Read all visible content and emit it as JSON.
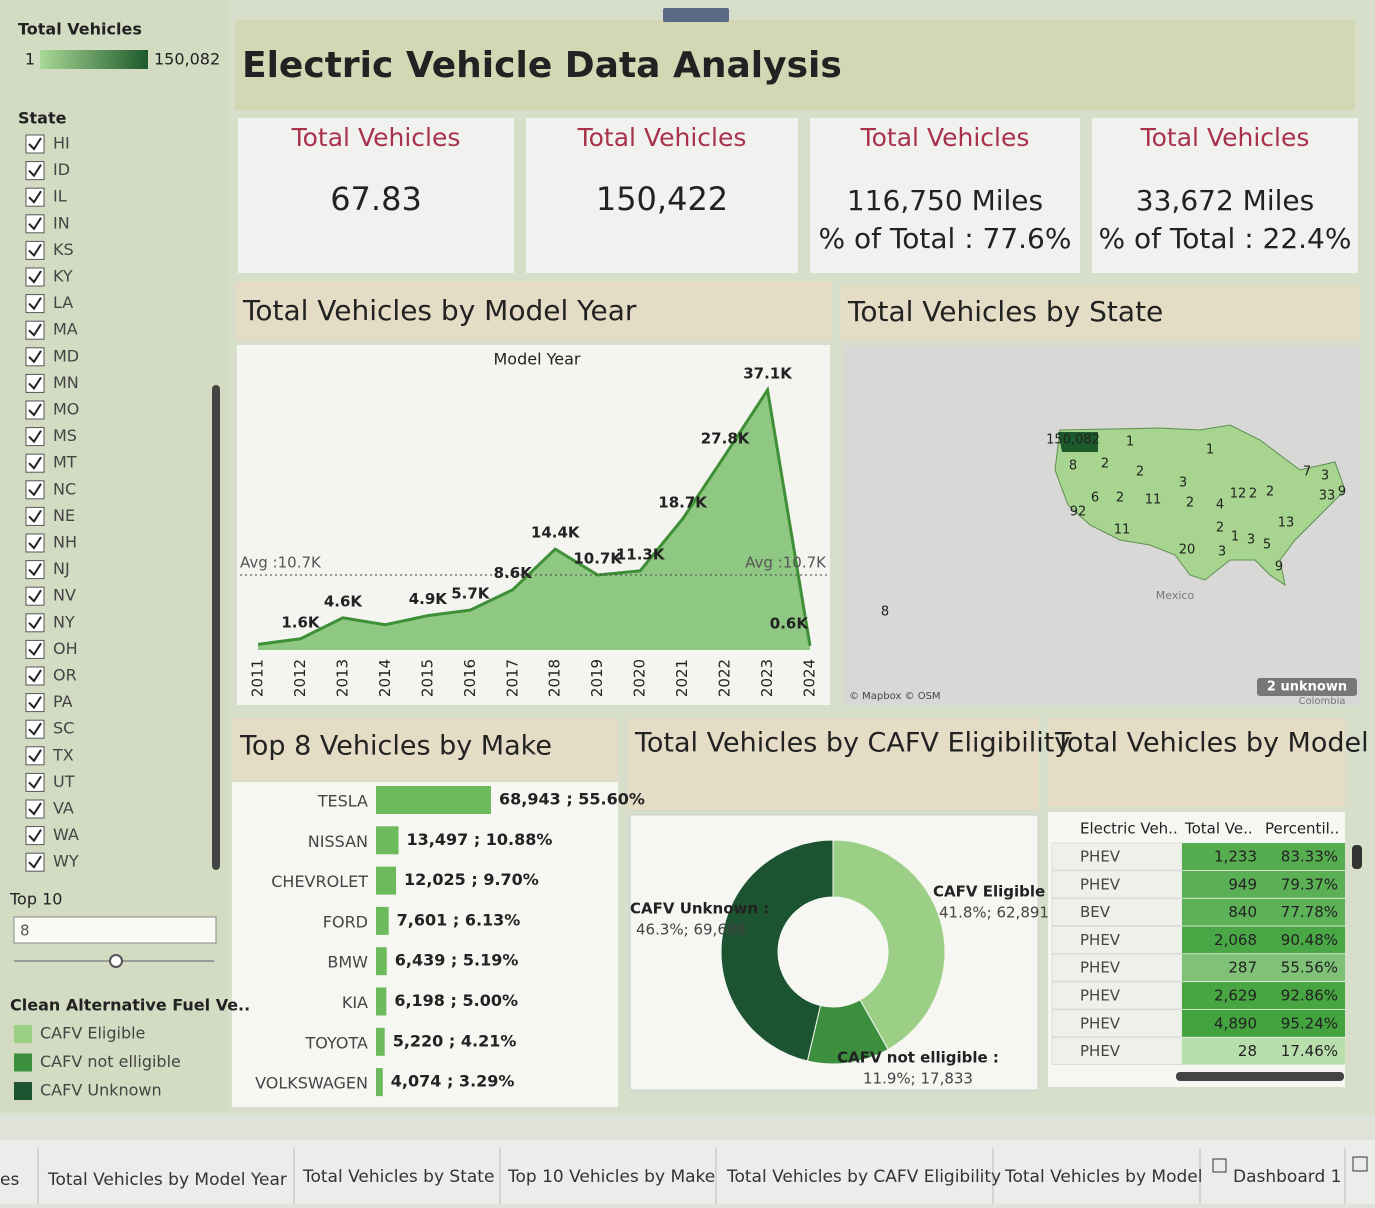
{
  "sidebar": {
    "color_legend": {
      "title": "Total Vehicles",
      "min": "1",
      "max": "150,082",
      "colors": [
        "#a9d896",
        "#1d5a2b"
      ]
    },
    "state_filter": {
      "title": "State",
      "states": [
        "HI",
        "ID",
        "IL",
        "IN",
        "KS",
        "KY",
        "LA",
        "MA",
        "MD",
        "MN",
        "MO",
        "MS",
        "MT",
        "NC",
        "NE",
        "NH",
        "NJ",
        "NV",
        "NY",
        "OH",
        "OR",
        "PA",
        "SC",
        "TX",
        "UT",
        "VA",
        "WA",
        "WY"
      ]
    },
    "top_n": {
      "title": "Top 10",
      "value": "8"
    }
  },
  "header": {
    "title": "Electric Vehicle Data Analysis"
  },
  "kpis": [
    {
      "title": "Total Vehicles",
      "lines": [
        "67.83"
      ]
    },
    {
      "title": "Total Vehicles",
      "lines": [
        "150,422"
      ]
    },
    {
      "title": "Total Vehicles",
      "lines": [
        "116,750 Miles",
        "% of Total : 77.6%"
      ]
    },
    {
      "title": "Total Vehicles",
      "lines": [
        "33,672 Miles",
        "% of Total : 22.4%"
      ]
    }
  ],
  "map": {
    "title": "Total Vehicles by State",
    "state_labels": [
      "150,082",
      "1",
      "8",
      "2",
      "2",
      "1",
      "6",
      "2",
      "11",
      "3",
      "2",
      "92",
      "11",
      "4",
      "12",
      "2",
      "2",
      "7",
      "3",
      "33",
      "9",
      "13",
      "2",
      "1",
      "3",
      "5",
      "20",
      "3",
      "9",
      "8"
    ],
    "places": [
      "Mexico",
      "Colombia"
    ],
    "credit": "© Mapbox © OSM",
    "unknown": "2 unknown"
  },
  "chart_data": [
    {
      "type": "area",
      "title": "Total Vehicles by Model Year",
      "x_label": "Model Year",
      "color": "#6dba5c",
      "categories": [
        "2011",
        "2012",
        "2013",
        "2014",
        "2015",
        "2016",
        "2017",
        "2018",
        "2019",
        "2020",
        "2021",
        "2022",
        "2023",
        "2024"
      ],
      "values": [
        800,
        1600,
        4600,
        3600,
        4900,
        5700,
        8600,
        14400,
        10700,
        11300,
        18700,
        27800,
        37100,
        600
      ],
      "value_labels": [
        null,
        "1.6K",
        "4.6K",
        null,
        "4.9K",
        "5.7K",
        "8.6K",
        "14.4K",
        "10.7K",
        "11.3K",
        "18.7K",
        "27.8K",
        "37.1K",
        "0.6K"
      ],
      "average": {
        "value": 10700,
        "label": "Avg :10.7K"
      }
    },
    {
      "type": "hbar",
      "title": "Top 8  Vehicles by Make",
      "color": "#6dba5c",
      "categories": [
        "TESLA",
        "NISSAN",
        "CHEVROLET",
        "FORD",
        "BMW",
        "KIA",
        "TOYOTA",
        "VOLKSWAGEN"
      ],
      "values": [
        68943,
        13497,
        12025,
        7601,
        6439,
        6198,
        5220,
        4074
      ],
      "value_labels": [
        "68,943 ; 55.60%",
        "13,497 ; 10.88%",
        "12,025 ; 9.70%",
        "7,601 ; 6.13%",
        "6,439 ; 5.19%",
        "6,198 ; 5.00%",
        "5,220 ; 4.21%",
        "4,074 ; 3.29%"
      ]
    },
    {
      "type": "donut",
      "title": "Total Vehicles by CAFV Eligibility",
      "categories": [
        "CAFV Eligible :",
        "CAFV not elligible :",
        "CAFV Unknown :"
      ],
      "values": [
        62891,
        17833,
        69698
      ],
      "value_labels": [
        "41.8%; 62,891",
        "11.9%; 17,833",
        "46.3%; 69,698"
      ],
      "colors": [
        "#9ccf86",
        "#3b8f3d",
        "#1c5330"
      ],
      "legend": {
        "title": "Clean Alternative Fuel Ve..",
        "names": [
          "CAFV Eligible",
          "CAFV not elligible",
          "CAFV Unknown"
        ]
      }
    },
    {
      "type": "table",
      "title": "Total Vehicles by Model",
      "columns": [
        "Electric Veh..",
        "Total Ve..",
        "Percentil.."
      ],
      "rows": [
        [
          "PHEV",
          "1,233",
          "83.33%"
        ],
        [
          "PHEV",
          "949",
          "79.37%"
        ],
        [
          "BEV",
          "840",
          "77.78%"
        ],
        [
          "PHEV",
          "2,068",
          "90.48%"
        ],
        [
          "PHEV",
          "287",
          "55.56%"
        ],
        [
          "PHEV",
          "2,629",
          "92.86%"
        ],
        [
          "PHEV",
          "4,890",
          "95.24%"
        ],
        [
          "PHEV",
          "28",
          "17.46%"
        ]
      ]
    }
  ],
  "tabs": [
    "es",
    "Total Vehicles by Model Year",
    "Total Vehicles by State",
    "Top 10 Vehicles by Make",
    "Total Vehicles by CAFV Eligibility",
    "Total Vehicles by Model",
    "Dashboard 1"
  ]
}
